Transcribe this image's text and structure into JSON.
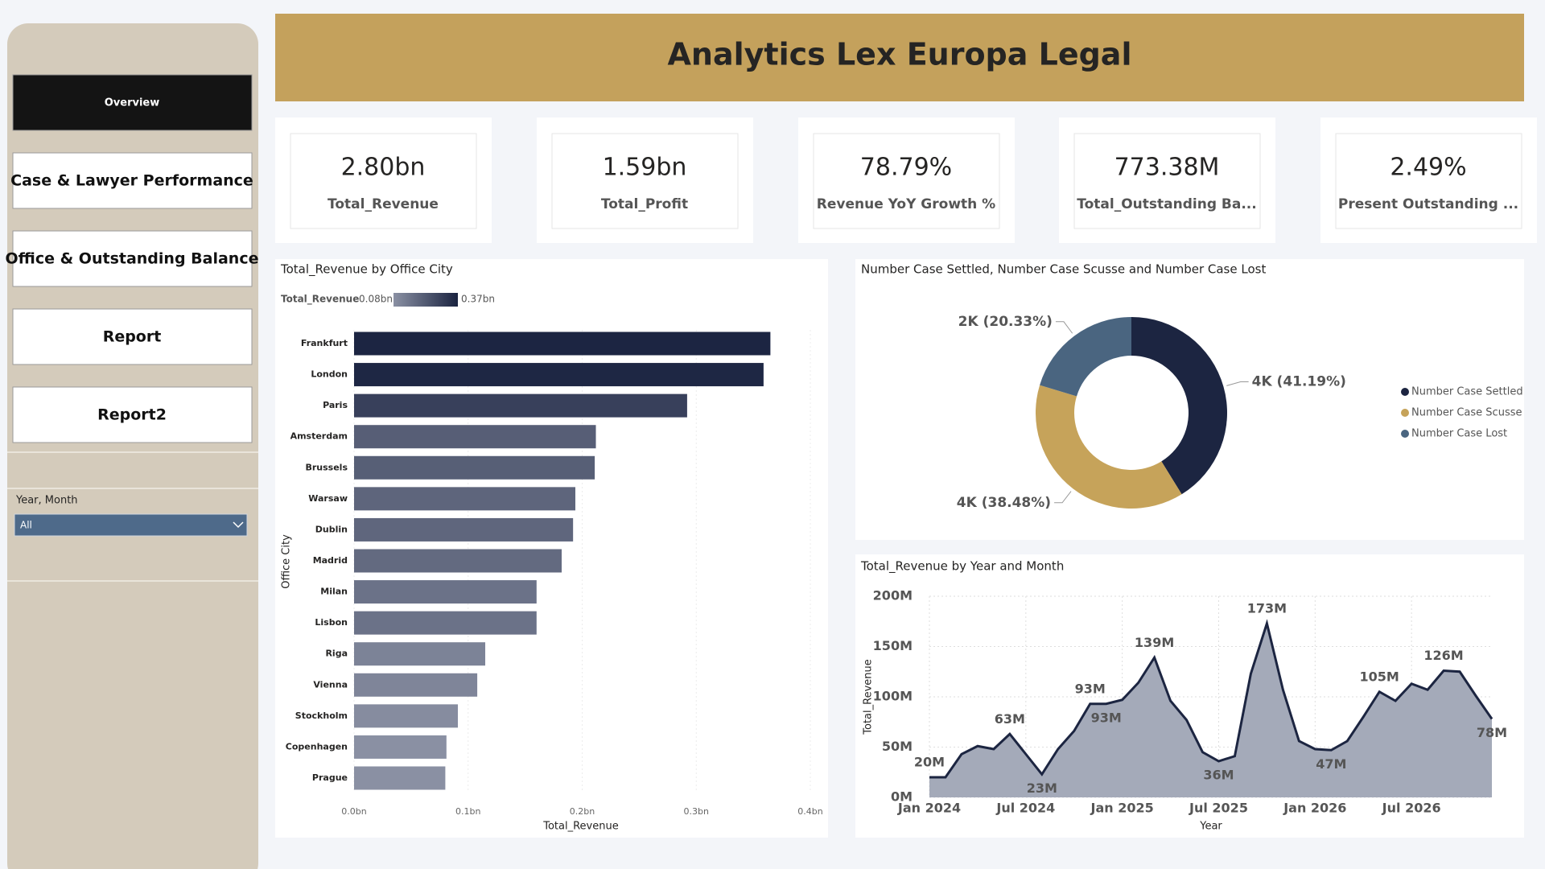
{
  "header": {
    "title": "Analytics Lex Europa Legal"
  },
  "nav": {
    "items": [
      "Overview",
      "Case & Lawyer Performance",
      "Office & Outstanding Balance",
      "Report",
      "Report2"
    ]
  },
  "filter": {
    "label": "Year, Month",
    "value": "All"
  },
  "kpis": [
    {
      "value": "2.80bn",
      "label": "Total_Revenue"
    },
    {
      "value": "1.59bn",
      "label": "Total_Profit"
    },
    {
      "value": "78.79%",
      "label": "Revenue YoY Growth %"
    },
    {
      "value": "773.38M",
      "label": "Total_Outstanding Ba..."
    },
    {
      "value": "2.49%",
      "label": "Present Outstanding ..."
    }
  ],
  "chart_data": [
    {
      "type": "hbar",
      "title": "Total_Revenue by Office City",
      "x_label": "Total_Revenue",
      "y_label": "Office City",
      "legend_title": "Total_Revenue",
      "color_scale": {
        "min": {
          "value": 0.08,
          "label": "0.08bn",
          "color": "#8a90a3"
        },
        "max": {
          "value": 0.37,
          "label": "0.37bn",
          "color": "#1a2340"
        }
      },
      "categories": [
        "Frankfurt",
        "London",
        "Paris",
        "Amsterdam",
        "Brussels",
        "Warsaw",
        "Dublin",
        "Madrid",
        "Milan",
        "Lisbon",
        "Riga",
        "Vienna",
        "Stockholm",
        "Copenhagen",
        "Prague"
      ],
      "values": [
        0.365,
        0.359,
        0.292,
        0.212,
        0.211,
        0.194,
        0.192,
        0.182,
        0.16,
        0.16,
        0.115,
        0.108,
        0.091,
        0.081,
        0.08
      ],
      "xlim": [
        0,
        0.4
      ],
      "xticks": [
        {
          "value": 0,
          "label": "0.0bn"
        },
        {
          "value": 0.1,
          "label": "0.1bn"
        },
        {
          "value": 0.2,
          "label": "0.2bn"
        },
        {
          "value": 0.3,
          "label": "0.3bn"
        },
        {
          "value": 0.4,
          "label": "0.4bn"
        }
      ],
      "grid": true
    },
    {
      "type": "donut",
      "title": "Number Case Settled, Number Case Scusse and Number Case Lost",
      "categories": [
        "Number Case Settled",
        "Number Case Scusse",
        "Number Case Lost"
      ],
      "values": [
        41.19,
        38.48,
        20.33
      ],
      "value_labels": [
        "4K (41.19%)",
        "4K (38.48%)",
        "2K (20.33%)"
      ],
      "colors": [
        "#1c2541",
        "#c6a35a",
        "#4a6580"
      ]
    },
    {
      "type": "area",
      "title": "Total_Revenue by Year and Month",
      "x_label": "Year",
      "y_label": "Total_Revenue",
      "color": "#1c2541",
      "fill": "#a4aab9",
      "x": [
        "2024-01",
        "2024-02",
        "2024-03",
        "2024-04",
        "2024-05",
        "2024-06",
        "2024-07",
        "2024-08",
        "2024-09",
        "2024-10",
        "2024-11",
        "2024-12",
        "2025-01",
        "2025-02",
        "2025-03",
        "2025-04",
        "2025-05",
        "2025-06",
        "2025-07",
        "2025-08",
        "2025-09",
        "2025-10",
        "2025-11",
        "2025-12",
        "2026-01",
        "2026-02",
        "2026-03",
        "2026-04",
        "2026-05",
        "2026-06",
        "2026-07",
        "2026-08",
        "2026-09",
        "2026-10",
        "2026-11",
        "2026-12"
      ],
      "values": [
        20,
        20,
        43,
        51,
        48,
        63,
        43,
        23,
        48,
        66,
        93,
        93,
        97,
        114,
        139,
        96,
        77,
        45,
        36,
        41,
        123,
        173,
        107,
        56,
        48,
        47,
        56,
        80,
        105,
        96,
        113,
        107,
        126,
        125,
        101,
        78
      ],
      "value_labels": [
        "20M",
        null,
        null,
        null,
        null,
        "63M",
        null,
        "23M",
        null,
        null,
        "93M",
        "93M",
        null,
        null,
        "139M",
        null,
        null,
        null,
        "36M",
        null,
        null,
        "173M",
        null,
        null,
        null,
        "47M",
        null,
        null,
        "105M",
        null,
        null,
        null,
        "126M",
        null,
        null,
        "78M"
      ],
      "xlim": [
        "2024-01",
        "2026-12"
      ],
      "xticks": [
        {
          "value": "2024-01",
          "label": "Jan 2024"
        },
        {
          "value": "2024-07",
          "label": "Jul 2024"
        },
        {
          "value": "2025-01",
          "label": "Jan 2025"
        },
        {
          "value": "2025-07",
          "label": "Jul 2025"
        },
        {
          "value": "2026-01",
          "label": "Jan 2026"
        },
        {
          "value": "2026-07",
          "label": "Jul 2026"
        }
      ],
      "ylim": [
        0,
        200
      ],
      "yticks": [
        {
          "value": 0,
          "label": "0M"
        },
        {
          "value": 50,
          "label": "50M"
        },
        {
          "value": 100,
          "label": "100M"
        },
        {
          "value": 150,
          "label": "150M"
        },
        {
          "value": 200,
          "label": "200M"
        }
      ],
      "grid": true
    }
  ]
}
